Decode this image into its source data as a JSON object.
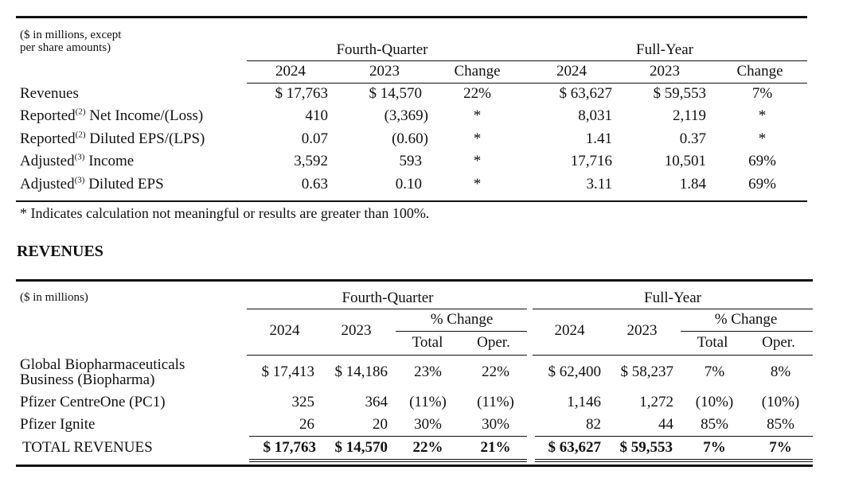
{
  "table1": {
    "units_note_line1": "($ in millions, except",
    "units_note_line2": "per share amounts)",
    "group_quarter": "Fourth-Quarter",
    "group_year": "Full-Year",
    "col_2024": "2024",
    "col_2023": "2023",
    "col_change": "Change",
    "rows": [
      {
        "label": "Revenues",
        "sup": "",
        "label_rest": "",
        "q24": "$ 17,763",
        "q23": "$ 14,570",
        "qchg": "22%",
        "y24": "$ 63,627",
        "y23": "$ 59,553",
        "ychg": "7%"
      },
      {
        "label": "Reported",
        "sup": "(2)",
        "label_rest": " Net Income/(Loss)",
        "q24": "410",
        "q23": "(3,369)",
        "qchg": "*",
        "y24": "8,031",
        "y23": "2,119",
        "ychg": "*"
      },
      {
        "label": "Reported",
        "sup": "(2)",
        "label_rest": " Diluted EPS/(LPS)",
        "q24": "0.07",
        "q23": "(0.60)",
        "qchg": "*",
        "y24": "1.41",
        "y23": "0.37",
        "ychg": "*"
      },
      {
        "label": "Adjusted",
        "sup": "(3)",
        "label_rest": " Income",
        "q24": "3,592",
        "q23": "593",
        "qchg": "*",
        "y24": "17,716",
        "y23": "10,501",
        "ychg": "69%"
      },
      {
        "label": "Adjusted",
        "sup": "(3)",
        "label_rest": " Diluted EPS",
        "q24": "0.63",
        "q23": "0.10",
        "qchg": "*",
        "y24": "3.11",
        "y23": "1.84",
        "ychg": "69%"
      }
    ],
    "footnote": "* Indicates calculation not meaningful or results are greater than 100%."
  },
  "section_heading": "REVENUES",
  "table2": {
    "units_note": "($ in millions)",
    "group_quarter": "Fourth-Quarter",
    "group_year": "Full-Year",
    "pct_change": "% Change",
    "col_2024": "2024",
    "col_2023": "2023",
    "col_total": "Total",
    "col_oper": "Oper.",
    "rows": [
      {
        "label1": "Global Biopharmaceuticals",
        "label2": "Business (Biopharma)",
        "q24": "$ 17,413",
        "q23": "$ 14,186",
        "qtot": "23%",
        "qop": "22%",
        "y24": "$ 62,400",
        "y23": "$ 58,237",
        "ytot": "7%",
        "yop": "8%"
      },
      {
        "label1": "Pfizer CentreOne (PC1)",
        "label2": "",
        "q24": "325",
        "q23": "364",
        "qtot": "(11%)",
        "qop": "(11%)",
        "y24": "1,146",
        "y23": "1,272",
        "ytot": "(10%)",
        "yop": "(10%)"
      },
      {
        "label1": "Pfizer Ignite",
        "label2": "",
        "q24": "26",
        "q23": "20",
        "qtot": "30%",
        "qop": "30%",
        "y24": "82",
        "y23": "44",
        "ytot": "85%",
        "yop": "85%"
      },
      {
        "label1": "TOTAL REVENUES",
        "label2": "",
        "q24": "$ 17,763",
        "q23": "$ 14,570",
        "qtot": "22%",
        "qop": "21%",
        "y24": "$ 63,627",
        "y23": "$ 59,553",
        "ytot": "7%",
        "yop": "7%"
      }
    ]
  }
}
